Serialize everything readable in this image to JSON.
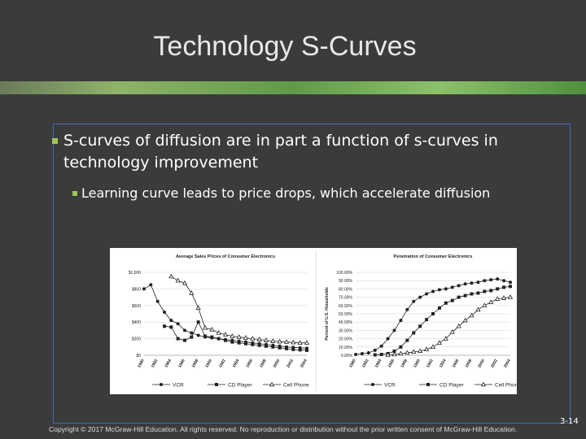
{
  "slide": {
    "title": "Technology S-Curves",
    "bullets": [
      {
        "text": "S-curves of diffusion are in part a function of s-curves in technology improvement",
        "sub": [
          "Learning curve leads to price drops, which accelerate diffusion"
        ]
      }
    ],
    "footer": "Copyright © 2017 McGraw-Hill Education. All rights reserved. No reproduction or distribution without the prior written consent of McGraw-Hill Education.",
    "page_number": "3-14"
  },
  "chart_data": [
    {
      "type": "line",
      "title": "Average Sales Prices of Consumer Electronics",
      "categories": [
        "1980",
        null,
        "1982",
        null,
        "1984",
        null,
        "1986",
        null,
        "1988",
        null,
        "1990",
        null,
        "1992",
        null,
        "1994",
        null,
        "1996",
        null,
        "1998",
        null,
        "2000",
        null,
        "2002",
        null,
        "2004"
      ],
      "ylim": [
        0,
        1000
      ],
      "yticks": [
        {
          "value": 0,
          "label": "$0"
        },
        {
          "value": 200,
          "label": "$200"
        },
        {
          "value": 400,
          "label": "$400"
        },
        {
          "value": 600,
          "label": "$600"
        },
        {
          "value": 800,
          "label": "$800"
        },
        {
          "value": 1000,
          "label": "$1,000"
        }
      ],
      "grid": true,
      "legend": "bottom",
      "series": [
        {
          "name": "VCR",
          "color": "#222222",
          "marker": "circle",
          "values": [
            800,
            850,
            650,
            520,
            420,
            380,
            300,
            270,
            240,
            220,
            210,
            200,
            190,
            180,
            170,
            160,
            150,
            140,
            130,
            120,
            110,
            100,
            95,
            90,
            85
          ]
        },
        {
          "name": "CD Player",
          "color": "#222222",
          "marker": "square",
          "values": [
            null,
            null,
            null,
            350,
            340,
            200,
            180,
            220,
            400,
            230,
            220,
            200,
            180,
            160,
            150,
            140,
            130,
            120,
            110,
            100,
            90,
            80,
            70,
            65,
            60
          ]
        },
        {
          "name": "Cell Phone",
          "color": "#222222",
          "marker": "triangle",
          "values": [
            null,
            null,
            null,
            null,
            950,
            900,
            870,
            750,
            570,
            330,
            310,
            270,
            250,
            230,
            220,
            210,
            200,
            190,
            180,
            170,
            165,
            160,
            155,
            150,
            150
          ]
        }
      ]
    },
    {
      "type": "line",
      "title": "Penetration of Consumer Electronics",
      "ylabel": "Percent of U.S. Households",
      "categories": [
        "1980",
        null,
        "1982",
        null,
        "1984",
        null,
        "1986",
        null,
        "1988",
        null,
        "1990",
        null,
        "1992",
        null,
        "1994",
        null,
        "1996",
        null,
        "1998",
        null,
        "2000",
        null,
        "2002",
        null,
        "2004"
      ],
      "ylim": [
        0,
        100
      ],
      "yticks": [
        {
          "value": 0,
          "label": "0.00%"
        },
        {
          "value": 10,
          "label": "10.00%"
        },
        {
          "value": 20,
          "label": "20.00%"
        },
        {
          "value": 30,
          "label": "30.00%"
        },
        {
          "value": 40,
          "label": "40.00%"
        },
        {
          "value": 50,
          "label": "50.00%"
        },
        {
          "value": 60,
          "label": "60.00%"
        },
        {
          "value": 70,
          "label": "70.00%"
        },
        {
          "value": 80,
          "label": "80.00%"
        },
        {
          "value": 90,
          "label": "90.00%"
        },
        {
          "value": 100,
          "label": "100.00%"
        }
      ],
      "grid": true,
      "legend": "bottom",
      "series": [
        {
          "name": "VCR",
          "color": "#222222",
          "marker": "circle",
          "values": [
            1,
            2,
            3,
            6,
            11,
            20,
            30,
            42,
            55,
            65,
            70,
            74,
            77,
            79,
            80,
            82,
            84,
            86,
            87,
            88,
            90,
            91,
            92,
            90,
            88
          ]
        },
        {
          "name": "CD Player",
          "color": "#222222",
          "marker": "square",
          "values": [
            null,
            null,
            null,
            0.5,
            1,
            2,
            5,
            10,
            18,
            27,
            35,
            43,
            50,
            57,
            63,
            66,
            70,
            72,
            74,
            75,
            77,
            78,
            80,
            82,
            83
          ]
        },
        {
          "name": "Cell Phone",
          "color": "#222222",
          "marker": "triangle",
          "values": [
            null,
            null,
            null,
            null,
            null,
            0.5,
            1,
            2,
            3,
            4,
            5,
            7,
            10,
            15,
            20,
            28,
            35,
            42,
            48,
            55,
            60,
            64,
            68,
            69,
            70
          ]
        }
      ]
    }
  ]
}
